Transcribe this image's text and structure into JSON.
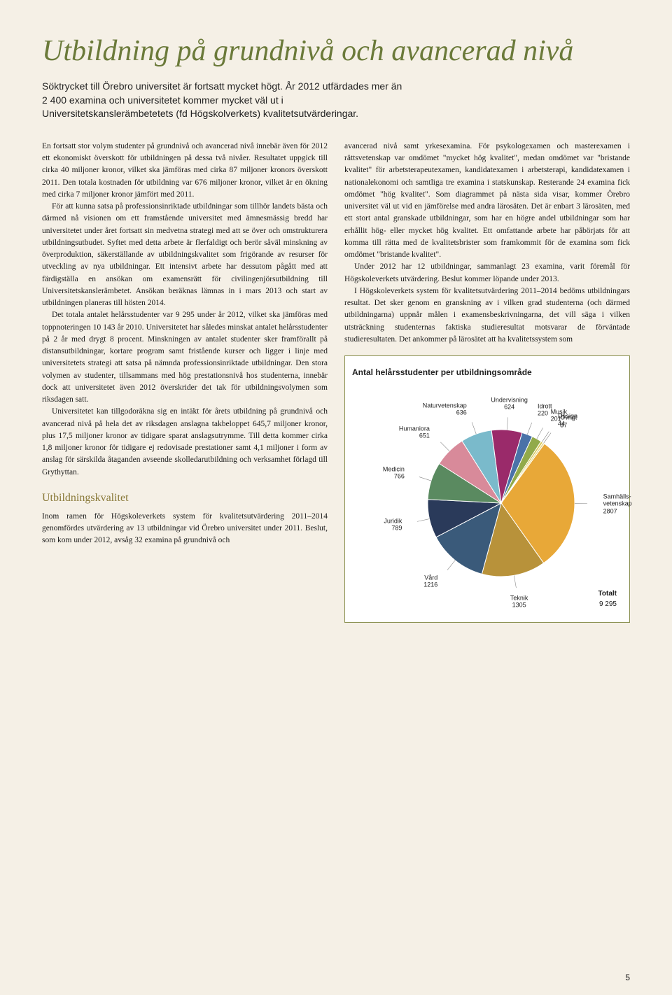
{
  "title": "Utbildning på grundnivå och avancerad nivå",
  "intro": "Söktrycket till Örebro universitet är fortsatt mycket högt. År 2012 utfärdades mer än 2 400 examina och universitetet kommer mycket väl ut i Universitetskanslerämbetetets (fd Högskolverkets) kvalitetsutvärderingar.",
  "left": {
    "p1": "En fortsatt stor volym studenter på grundnivå och avancerad nivå innebär även för 2012 ett ekonomiskt överskott för utbildningen på dessa två nivåer. Resultatet uppgick till cirka 40 miljoner kronor, vilket ska jämföras med cirka 87 miljoner kronors överskott 2011. Den totala kostnaden för utbildning var 676 miljoner kronor, vilket är en ökning med cirka 7 miljoner kronor jämfört med 2011.",
    "p2": "För att kunna satsa på professionsinriktade utbildningar som tillhör landets bästa och därmed nå visionen om ett framstående universitet med ämnesmässig bredd har universitetet under året fortsatt sin medvetna strategi med att se över och omstrukturera utbildningsutbudet. Syftet med detta arbete är flerfaldigt och berör såväl minskning av överproduktion, säkerställande av utbildningskvalitet som frigörande av resurser för utveckling av nya utbildningar. Ett intensivt arbete har dessutom pågått med att färdigställa en ansökan om examensrätt för civilingenjörsutbildning till Universitetskanslerämbetet. Ansökan beräknas lämnas in i mars 2013 och start av utbildningen planeras till hösten 2014.",
    "p3": "Det totala antalet helårsstudenter var 9 295 under år 2012, vilket ska jämföras med toppnoteringen 10 143 år 2010. Universitetet har således minskat antalet helårsstudenter på 2 år med drygt 8 procent. Minskningen av antalet studenter sker framförallt på distansutbildningar, kortare program samt fristående kurser och ligger i linje med universitetets strategi att satsa på nämnda professionsinriktade utbildningar. Den stora volymen av studenter, tillsammans med hög prestationsnivå hos studenterna, innebär dock att universitetet även 2012 överskrider det tak för utbildningsvolymen som riksdagen satt.",
    "p4": "Universitetet kan tillgodoräkna sig en intäkt för årets utbildning på grundnivå och avancerad nivå på hela det av riksdagen anslagna takbeloppet 645,7 miljoner kronor, plus 17,5 miljoner kronor av tidigare sparat anslagsutrymme. Till detta kommer cirka 1,8 miljoner kronor för tidigare ej redovisade prestationer samt 4,1 miljoner i form av anslag för särskilda åtaganden avseende skolledarutbildning och verksamhet förlagd till Grythyttan.",
    "subhead": "Utbildningskvalitet",
    "p5": "Inom ramen för Högskoleverkets system för kvalitetsutvärdering 2011–2014 genomfördes utvärdering av 13 utbildningar vid Örebro universitet under 2011. Beslut, som kom under 2012, avsåg 32 examina på grundnivå och"
  },
  "right": {
    "p1": "avancerad nivå samt yrkesexamina. För psykologexamen och masterexamen i rättsvetenskap var omdömet \"mycket hög kvalitet\", medan omdömet var \"bristande kvalitet\" för arbetsterapeutexamen, kandidatexamen i arbetsterapi, kandidatexamen i nationalekonomi och samtliga tre examina i statskunskap. Resterande 24 examina fick omdömet \"hög kvalitet\". Som diagrammet på nästa sida visar, kommer Örebro universitet väl ut vid en jämförelse med andra lärosäten. Det är enbart 3 lärosäten, med ett stort antal granskade utbildningar, som har en högre andel utbildningar som har erhållit hög- eller mycket hög kvalitet. Ett omfattande arbete har påbörjats för att komma till rätta med de kvalitetsbrister som framkommit för de examina som fick omdömet \"bristande kvalitet\".",
    "p2": "Under 2012 har 12 utbildningar, sammanlagt 23 examina, varit föremål för Högskoleverkets utvärdering. Beslut kommer löpande under 2013.",
    "p3": "I Högskoleverkets system för kvalitetsutvärdering 2011–2014 bedöms utbildningars resultat. Det sker genom en granskning av i vilken grad studenterna (och därmed utbildningarna) uppnår målen i examensbeskrivningarna, det vill säga i vilken utsträckning studenternas faktiska studieresultat motsvarar de förväntade studieresultaten. Det ankommer på lärosätet att ha kvalitetssystem som"
  },
  "chart": {
    "title": "Antal helårsstudenter per utbildningsområde",
    "type": "pie",
    "total_label": "Totalt",
    "total_value": "9 295",
    "slices": [
      {
        "label": "Samhälls-\nvetenskap",
        "value": 2807,
        "color": "#e8a838"
      },
      {
        "label": "Teknik",
        "value": 1305,
        "color": "#b8923a"
      },
      {
        "label": "Vård",
        "value": 1216,
        "color": "#3a5a7a"
      },
      {
        "label": "Juridik",
        "value": 789,
        "color": "#2a3a5a"
      },
      {
        "label": "Medicin",
        "value": 766,
        "color": "#5a8a60"
      },
      {
        "label": "Humaniora",
        "value": 651,
        "color": "#d88a9a"
      },
      {
        "label": "Naturvetenskap",
        "value": 636,
        "color": "#7abacb"
      },
      {
        "label": "Undervisning",
        "value": 624,
        "color": "#9a2a6a"
      },
      {
        "label": "Idrott",
        "value": 220,
        "color": "#4a72a8"
      },
      {
        "label": "Musik",
        "value": 201,
        "color": "#92aa4a"
      },
      {
        "label": "Design",
        "value": 44,
        "color": "#d8c85a"
      },
      {
        "label": "Övrigt",
        "value": 37,
        "color": "#e8d888"
      }
    ]
  },
  "page_num": "5"
}
